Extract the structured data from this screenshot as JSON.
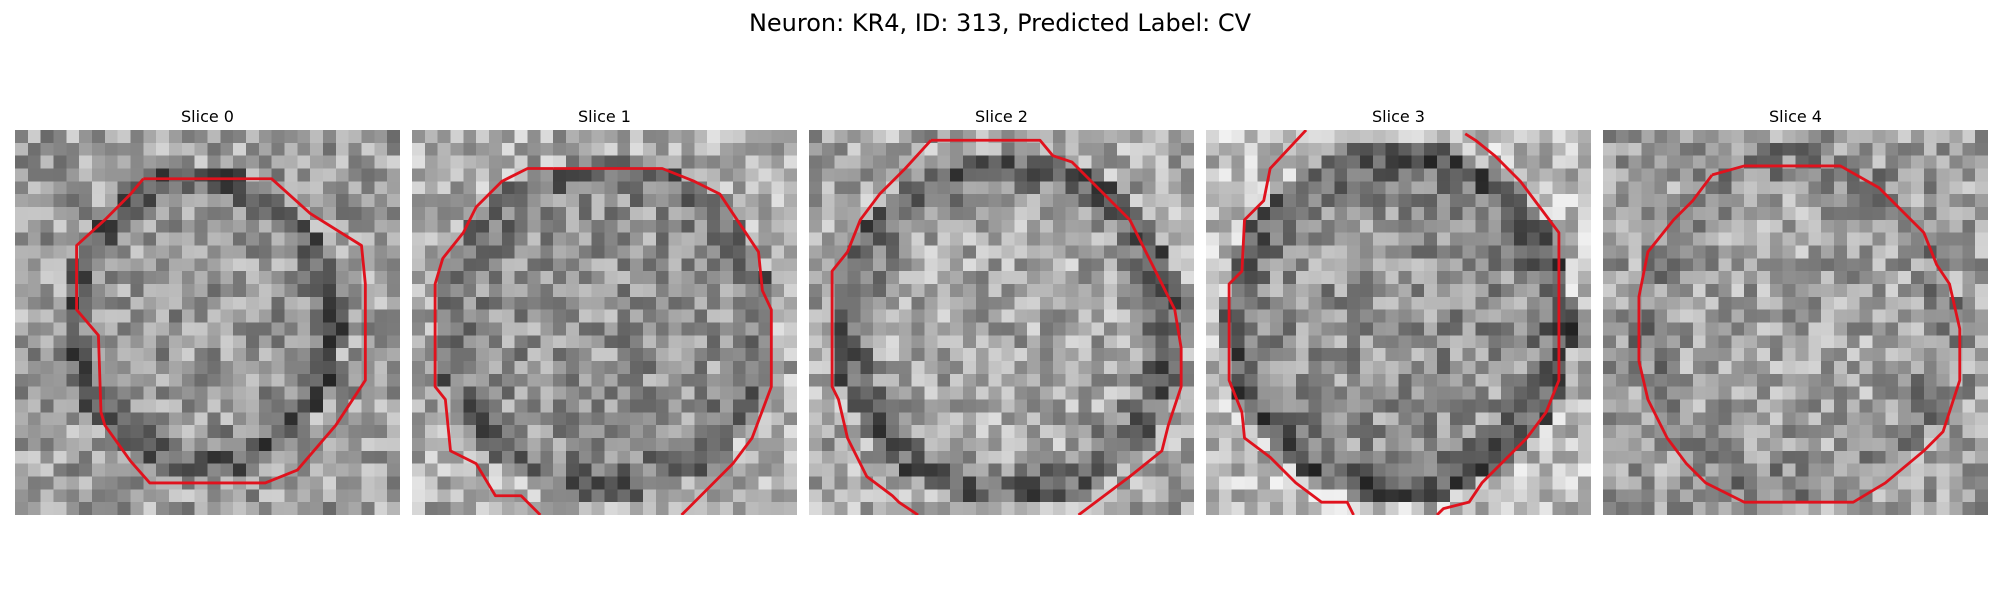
{
  "figure": {
    "title": "Neuron: KR4, ID: 313, Predicted Label: CV"
  },
  "contour_color": "#e0121d",
  "slices": [
    {
      "title": "Slice 0"
    },
    {
      "title": "Slice 1"
    },
    {
      "title": "Slice 2"
    },
    {
      "title": "Slice 3"
    },
    {
      "title": "Slice 4"
    }
  ]
}
